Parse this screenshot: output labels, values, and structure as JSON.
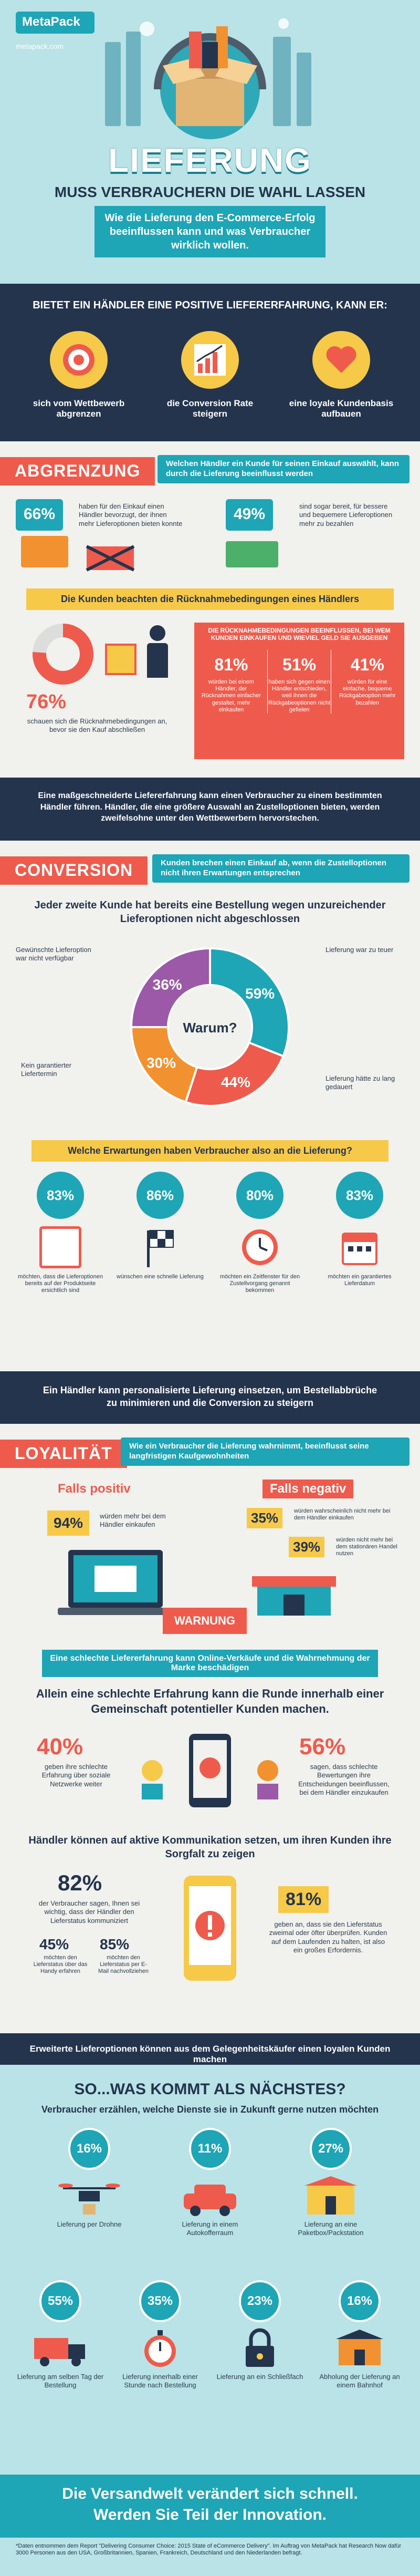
{
  "brand": {
    "name": "MetaPack",
    "url": "metapack.com"
  },
  "hero": {
    "title": "LIEFERUNG",
    "subtitle": "MUSS VERBRAUCHERN DIE WAHL LASSEN",
    "intro": "Wie die Lieferung den E-Commerce-Erfolg beeinflussen kann und was Verbraucher wirklich wollen."
  },
  "positive": {
    "heading": "BIETET EIN HÄNDLER EINE POSITIVE LIEFERERFAHRUNG, KANN ER:",
    "items": [
      {
        "label": "sich vom Wettbewerb abgrenzen",
        "icon": "target-icon"
      },
      {
        "label": "die Conversion Rate steigern",
        "icon": "chart-icon"
      },
      {
        "label": "eine loyale Kundenbasis aufbauen",
        "icon": "heart-icon"
      }
    ]
  },
  "abgrenzung": {
    "tag": "ABGRENZUNG",
    "desc": "Welchen Händler ein Kunde für seinen Einkauf auswählt, kann durch die Lieferung beeinflusst werden",
    "stat1": {
      "value": "66%",
      "text": "haben für den Einkauf einen Händler bevorzugt, der ihnen mehr Lieferoptionen bieten konnte"
    },
    "stat2": {
      "value": "49%",
      "text": "sind sogar bereit, für bessere und bequemere Lieferoptionen mehr zu bezahlen"
    },
    "returns_heading": "Die Kunden beachten die Rücknahmebedingungen eines Händlers",
    "donut": {
      "value": "76%",
      "text": "schauen sich die Rücknahmebedingungen an, bevor sie den Kauf abschließen"
    },
    "table_heading": "DIE RÜCKNAHMEBEDINGUNGEN BEEINFLUSSEN, BEI WEM KUNDEN EINKAUFEN UND WIEVIEL GELD SIE AUSGEBEN",
    "cols": [
      {
        "value": "81%",
        "text": "würden bei einem Händler, der Rücknahmen einfacher gestaltet, mehr einkaufen"
      },
      {
        "value": "51%",
        "text": "haben sich gegen einen Händler entschieden, weil ihnen die Rückgabeoptionen nicht gefielen"
      },
      {
        "value": "41%",
        "text": "würden für eine einfache, bequeme Rückgabeoption mehr bezahlen"
      }
    ],
    "summary": "Eine maßgeschneiderte Liefererfahrung kann einen Verbraucher zu einem bestimmten Händler führen. Händler, die eine größere Auswahl an Zustelloptionen bieten, werden zweifelsohne unter den Wettbewerbern hervorstechen."
  },
  "conversion": {
    "tag": "CONVERSION",
    "desc": "Kunden brechen einen Einkauf ab, wenn die Zustelloptionen nicht ihren Erwartungen entsprechen",
    "heading": "Jeder zweite Kunde hat bereits eine Bestellung wegen unzureichender Lieferoptionen nicht abgeschlossen",
    "center": "Warum?",
    "slices": [
      {
        "value": "59%",
        "label": "Lieferung war zu teuer",
        "color": "#1ea5b6"
      },
      {
        "value": "44%",
        "label": "Lieferung hätte zu lang gedauert",
        "color": "#ee5b4c"
      },
      {
        "value": "30%",
        "label": "Kein garantierter Liefertermin",
        "color": "#f2912f"
      },
      {
        "value": "36%",
        "label": "Gewünschte Lieferoption war nicht verfügbar",
        "color": "#9b59a8"
      }
    ],
    "expect_heading": "Welche Erwartungen haben Verbraucher also an die Lieferung?",
    "expect": [
      {
        "value": "83%",
        "text": "möchten, dass die Lieferoptionen bereits auf der Produktseite ersichtlich sind",
        "icon": "list-icon"
      },
      {
        "value": "86%",
        "text": "wünschen eine schnelle Lieferung",
        "icon": "flag-icon"
      },
      {
        "value": "80%",
        "text": "möchten ein Zeitfenster für den Zustellvorgang genannt bekommen",
        "icon": "clock-icon"
      },
      {
        "value": "83%",
        "text": "möchten ein garantiertes Lieferdatum",
        "icon": "calendar-icon"
      }
    ],
    "summary": "Ein Händler kann personalisierte Lieferung einsetzen, um Bestellabbrüche zu minimieren und die Conversion zu steigern"
  },
  "loyal": {
    "tag": "LOYALITÄT",
    "desc": "Wie ein Verbraucher die Lieferung wahrnimmt, beeinflusst seine langfristigen Kaufgewohnheiten",
    "pos_label": "Falls positiv",
    "neg_label": "Falls negativ",
    "pos": {
      "value": "94%",
      "text": "würden mehr bei dem Händler einkaufen"
    },
    "neg1": {
      "value": "35%",
      "text": "würden wahrscheinlich nicht mehr bei dem Händler einkaufen"
    },
    "neg2": {
      "value": "39%",
      "text": "würden nicht mehr bei dem stationären Handel nutzen"
    },
    "warn": "WARNUNG",
    "bar": "Eine schlechte Liefererfahrung kann Online-Verkäufe und die Wahrnehmung der Marke beschädigen",
    "ruin": "Allein eine schlechte Erfahrung kann die Runde innerhalb einer Gemeinschaft potentieller Kunden machen.",
    "left": {
      "value": "40%",
      "text": "geben ihre schlechte Erfahrung über soziale Netzwerke weiter"
    },
    "right": {
      "value": "56%",
      "text": "sagen, dass schlechte Bewertungen ihre Entscheidungen beeinflussen, bei dem Händler einzukaufen"
    },
    "comm_heading": "Händler können auf aktive Kommunikation setzen, um ihren Kunden ihre Sorgfalt zu zeigen",
    "c1": {
      "value": "82%",
      "text": "der Verbraucher sagen, Ihnen sei wichtig, dass der Händler den Lieferstatus kommuniziert"
    },
    "c2": {
      "value": "45%",
      "text": "möchten den Lieferstatus über das Handy erfahren"
    },
    "c3": {
      "value": "85%",
      "text": "möchten den Lieferstatus per E-Mail nachvollziehen"
    },
    "c4": {
      "value": "81%",
      "text": "geben an, dass sie den Lieferstatus zweimal oder öfter überprüfen. Kunden auf dem Laufenden zu halten, ist also ein großes Erfordernis."
    },
    "summary": "Erweiterte Lieferoptionen können aus dem Gelegenheitskäufer einen loyalen Kunden machen"
  },
  "next": {
    "heading": "SO...WAS KOMMT ALS NÄCHSTES?",
    "sub": "Verbraucher erzählen, welche Dienste sie in Zukunft gerne nutzen möchten",
    "row1": [
      {
        "value": "16%",
        "text": "Lieferung per Drohne",
        "icon": "drone-icon"
      },
      {
        "value": "11%",
        "text": "Lieferung in einem Autokofferraum",
        "icon": "car-icon"
      },
      {
        "value": "27%",
        "text": "Lieferung an eine Paketbox/Packstation",
        "icon": "locker-icon"
      }
    ],
    "row2": [
      {
        "value": "55%",
        "text": "Lieferung am selben Tag der Bestellung",
        "icon": "truck-icon"
      },
      {
        "value": "35%",
        "text": "Lieferung innerhalb einer Stunde nach Bestellung",
        "icon": "stopwatch-icon"
      },
      {
        "value": "23%",
        "text": "Lieferung an ein Schließfach",
        "icon": "lock-icon"
      },
      {
        "value": "16%",
        "text": "Abholung der Lieferung an einem Bahnhof",
        "icon": "station-icon"
      }
    ],
    "footer1": "Die Versandwelt verändert sich schnell.",
    "footer2": "Werden Sie Teil der Innovation.",
    "source": "*Daten entnommen dem Report \"Delivering Consumer Choice: 2015 State of eCommerce Delivery\". Im Auftrag von MetaPack hat Research Now dafür 3000 Personen aus den USA, Großbritannien, Spanien, Frankreich, Deutschland und den Niederlanden befragt."
  },
  "colors": {
    "teal": "#1ea5b6",
    "coral": "#ee5b4c",
    "navy": "#24344d",
    "orange": "#f2912f",
    "purple": "#9b59a8",
    "yellow": "#f7c948"
  }
}
